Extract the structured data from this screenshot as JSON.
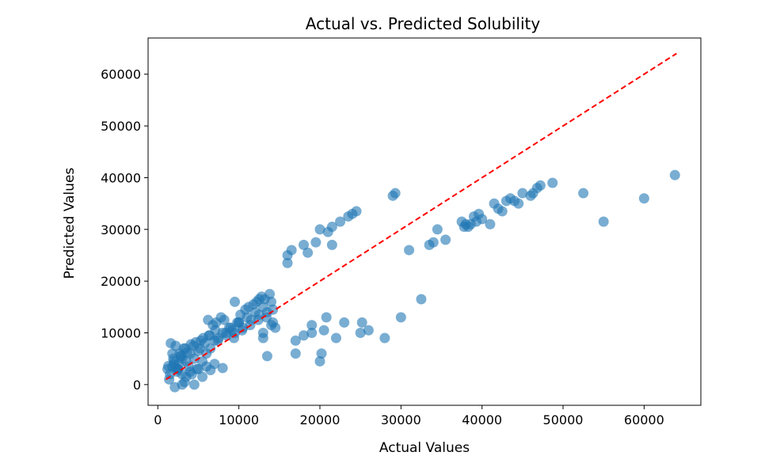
{
  "chart_data": {
    "type": "scatter",
    "title": "Actual vs. Predicted Solubility",
    "xlabel": "Actual Values",
    "ylabel": "Predicted Values",
    "xlim": [
      -1200,
      67000
    ],
    "ylim": [
      -4000,
      67000
    ],
    "xticks": [
      0,
      10000,
      20000,
      30000,
      40000,
      50000,
      60000
    ],
    "yticks": [
      0,
      10000,
      20000,
      30000,
      40000,
      50000,
      60000
    ],
    "grid": false,
    "point_color": "#1f77b4",
    "point_alpha": 0.6,
    "reference_line": {
      "style": "dashed",
      "color": "#ff0000",
      "from": [
        1000,
        1000
      ],
      "to": [
        64000,
        64000
      ]
    },
    "series": [
      {
        "x": [
          1500,
          2000,
          2500,
          3000,
          1800,
          2200,
          2800,
          3500,
          4000,
          1200,
          1600,
          2400,
          3200,
          3800,
          4500,
          5000,
          1400,
          2100,
          2600,
          3300,
          4200,
          4800,
          5500,
          6000,
          6500,
          7000,
          7500,
          8000,
          8500,
          9000,
          9500,
          10000,
          10500,
          11000,
          11500,
          12000,
          12500,
          13000,
          13500,
          14000,
          6200,
          6800,
          7200,
          7800,
          8200,
          8800,
          9200,
          9800,
          10200,
          10800,
          11200,
          11800,
          12200,
          12800,
          13200,
          13800,
          5200,
          5800,
          6400,
          7400,
          8400,
          9400,
          10400,
          11400,
          12400,
          13400,
          14200,
          2500,
          3000,
          4000,
          5000,
          6000,
          7000,
          8000,
          3500,
          4500,
          5500,
          6500,
          1800,
          2300,
          2900,
          3600,
          4400,
          5300,
          1300,
          1900,
          2700,
          3400,
          4100,
          4700,
          5600,
          6300,
          7100,
          2000,
          3000,
          9500,
          10000,
          13000,
          14500,
          13500,
          17000,
          20500,
          22000,
          19000,
          16000,
          16500,
          18000,
          18500,
          19500,
          20000,
          21000,
          21500,
          22500,
          23500,
          24500,
          29000,
          29300,
          16000,
          21500,
          14000,
          14200,
          12500,
          13000,
          17000,
          18000,
          19000,
          20000,
          20200,
          20800,
          23000,
          24000,
          25000,
          25200,
          26000,
          28000,
          30000,
          31000,
          32500,
          33500,
          34000,
          34500,
          35500,
          37500,
          37800,
          38000,
          38300,
          38600,
          39000,
          39300,
          39600,
          40000,
          41000,
          41500,
          42000,
          42500,
          43000,
          43500,
          44000,
          44500,
          45000,
          46000,
          46300,
          46800,
          47200,
          48700,
          52500,
          55000,
          60000,
          63800
        ],
        "y": [
          2000,
          4000,
          3000,
          5000,
          6000,
          7500,
          5500,
          4500,
          6000,
          3000,
          8000,
          2500,
          7000,
          3500,
          5000,
          6500,
          1000,
          -500,
          4000,
          500,
          2000,
          3000,
          4500,
          6000,
          7000,
          8500,
          9000,
          10000,
          9500,
          11000,
          10000,
          12000,
          11000,
          13000,
          12500,
          14000,
          13500,
          15000,
          14000,
          16000,
          12500,
          11500,
          12000,
          13000,
          12500,
          11000,
          10500,
          12000,
          13500,
          14500,
          15000,
          15500,
          16000,
          17000,
          16500,
          17500,
          7000,
          8000,
          9500,
          8500,
          10000,
          9000,
          10500,
          11500,
          12500,
          13000,
          14500,
          3000,
          2000,
          2500,
          3000,
          3500,
          4000,
          3200,
          1500,
          0,
          1500,
          2800,
          3500,
          3200,
          5500,
          6200,
          7500,
          8500,
          3600,
          5000,
          6000,
          7000,
          7800,
          8200,
          9000,
          9500,
          10500,
          4500,
          0,
          16000,
          12000,
          9000,
          11000,
          5500,
          6000,
          10500,
          9000,
          11500,
          25000,
          26000,
          27000,
          25500,
          27500,
          30000,
          29500,
          30500,
          31500,
          32500,
          33500,
          36500,
          37000,
          23500,
          27000,
          11500,
          12000,
          16500,
          10000,
          8500,
          9500,
          10000,
          4500,
          6000,
          13000,
          12000,
          33000,
          10000,
          12000,
          10500,
          9000,
          13000,
          26000,
          16500,
          27000,
          27500,
          30000,
          28000,
          31500,
          30500,
          31000,
          30500,
          31000,
          32500,
          31500,
          33000,
          32000,
          31000,
          35000,
          34000,
          33500,
          35500,
          36000,
          35500,
          35000,
          37000,
          36500,
          37000,
          38000,
          38500,
          39000,
          37000,
          31500,
          36000,
          40500
        ]
      }
    ]
  }
}
